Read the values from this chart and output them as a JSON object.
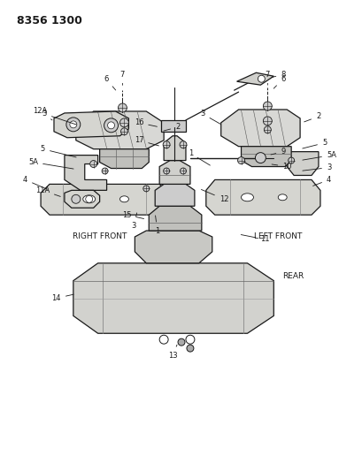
{
  "title": "8356 1300",
  "bg": "#f5f5f0",
  "lc": "#1a1a1a",
  "right_front_label": "RIGHT FRONT",
  "left_front_label": "LEFT FRONT",
  "rear_label": "REAR",
  "figsize": [
    4.1,
    5.33
  ],
  "dpi": 100
}
